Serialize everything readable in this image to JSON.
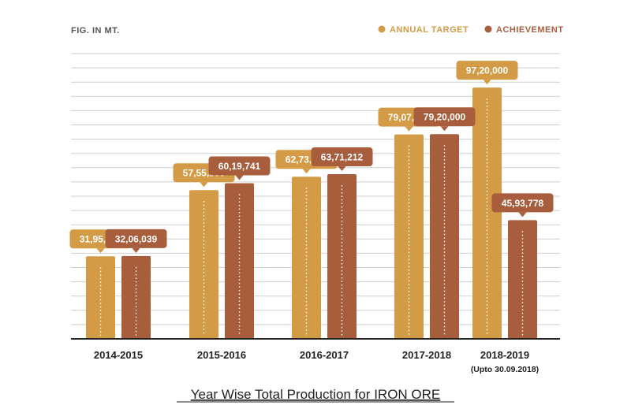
{
  "chart_data": {
    "type": "bar",
    "title": "Year Wise Total Production for IRON ORE",
    "unit_label": "FIG. IN MT.",
    "categories": [
      "2014-2015",
      "2015-2016",
      "2016-2017",
      "2017-2018",
      "2018-2019"
    ],
    "category_notes": [
      "",
      "",
      "",
      "",
      "(Upto 30.09.2018)"
    ],
    "series": [
      {
        "name": "ANNUAL TARGET",
        "color": "#d39b45",
        "values": [
          3195200,
          5755500,
          6273000,
          7907000,
          9720000
        ],
        "labels": [
          "31,95,200",
          "57,55,500",
          "62,73,000",
          "79,07,000",
          "97,20,000"
        ]
      },
      {
        "name": "ACHIEVEMENT",
        "color": "#a85e3c",
        "values": [
          3206039,
          6019741,
          6371212,
          7920000,
          4593778
        ],
        "labels": [
          "32,06,039",
          "60,19,741",
          "63,71,212",
          "79,20,000",
          "45,93,778"
        ]
      }
    ],
    "ylim": [
      0,
      10000000
    ],
    "grid": true,
    "legend_position": "top-right"
  }
}
